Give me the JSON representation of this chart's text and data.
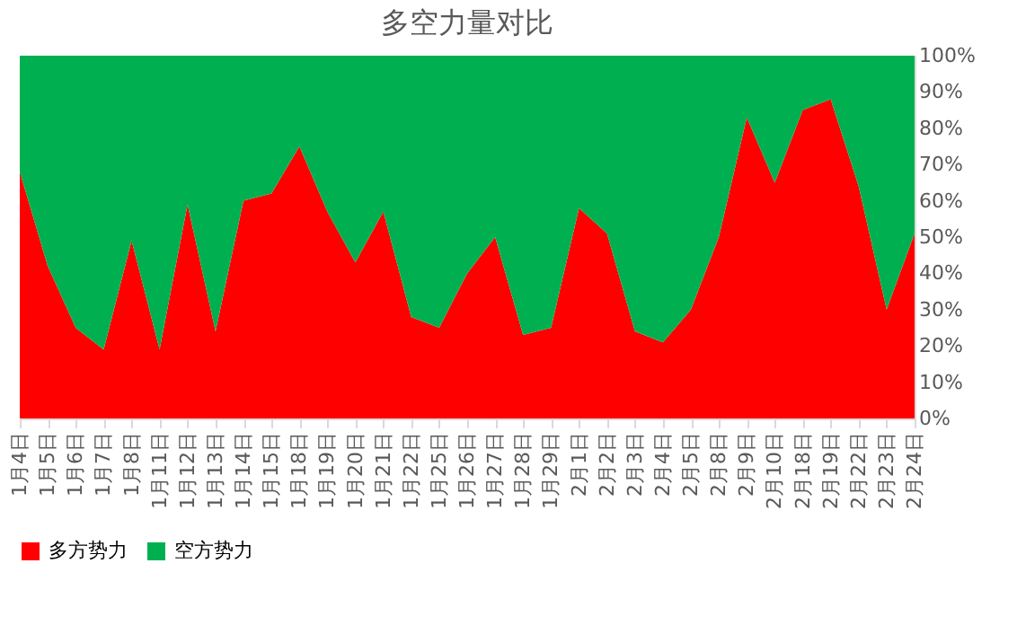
{
  "chart_data": {
    "type": "area",
    "title": "多空力量对比",
    "stacked": true,
    "legend": "bottom",
    "grid": false,
    "categories": [
      "1月4日",
      "1月5日",
      "1月6日",
      "1月7日",
      "1月8日",
      "1月11日",
      "1月12日",
      "1月13日",
      "1月14日",
      "1月15日",
      "1月18日",
      "1月19日",
      "1月20日",
      "1月21日",
      "1月22日",
      "1月25日",
      "1月26日",
      "1月27日",
      "1月28日",
      "1月29日",
      "2月1日",
      "2月2日",
      "2月3日",
      "2月4日",
      "2月5日",
      "2月8日",
      "2月9日",
      "2月10日",
      "2月18日",
      "2月19日",
      "2月22日",
      "2月23日",
      "2月24日"
    ],
    "series": [
      {
        "name": "多方势力",
        "color": "#ff0000",
        "values": [
          68,
          42,
          25,
          19,
          49,
          19,
          59,
          24,
          60,
          62,
          75,
          57,
          43,
          57,
          28,
          25,
          40,
          50,
          23,
          25,
          58,
          51,
          24,
          21,
          30,
          50,
          83,
          65,
          85,
          88,
          64,
          30,
          51
        ]
      },
      {
        "name": "空方势力",
        "color": "#00b050",
        "values": [
          32,
          58,
          75,
          81,
          51,
          81,
          41,
          76,
          40,
          38,
          25,
          43,
          57,
          43,
          72,
          75,
          60,
          50,
          77,
          75,
          42,
          49,
          76,
          79,
          70,
          50,
          17,
          35,
          15,
          12,
          36,
          70,
          49
        ]
      }
    ],
    "ylim": [
      0,
      100
    ],
    "yticks": [
      {
        "value": 0,
        "label": "0%"
      },
      {
        "value": 10,
        "label": "10%"
      },
      {
        "value": 20,
        "label": "20%"
      },
      {
        "value": 30,
        "label": "30%"
      },
      {
        "value": 40,
        "label": "40%"
      },
      {
        "value": 50,
        "label": "50%"
      },
      {
        "value": 60,
        "label": "60%"
      },
      {
        "value": 70,
        "label": "70%"
      },
      {
        "value": 80,
        "label": "80%"
      },
      {
        "value": 90,
        "label": "90%"
      },
      {
        "value": 100,
        "label": "100%"
      }
    ]
  }
}
